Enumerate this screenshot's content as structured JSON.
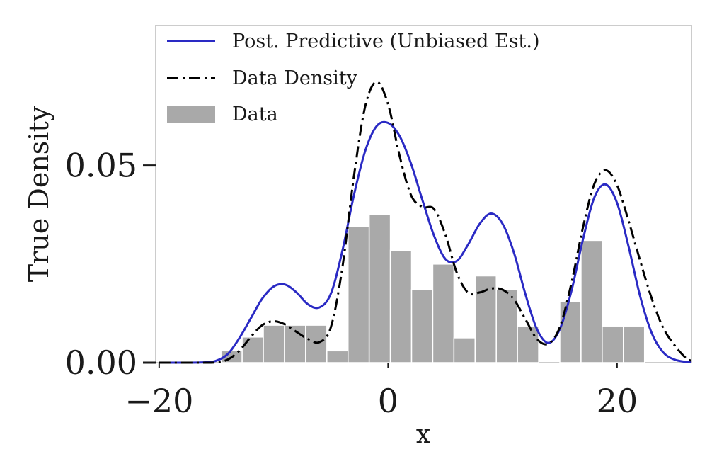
{
  "chart_data": {
    "type": "line",
    "xlabel": "x",
    "ylabel": "True Density",
    "xlim": [
      -20.3,
      26.5
    ],
    "ylim": [
      0,
      0.0855
    ],
    "xticks": [
      -20,
      0,
      20
    ],
    "xtick_labels": [
      "−20",
      "0",
      "20"
    ],
    "yticks": [
      0,
      0.05
    ],
    "ytick_labels": [
      "0.00",
      "0.05"
    ],
    "legend_position": "top-left",
    "legend": {
      "posterior": "Post. Predictive (Unbiased Est.)",
      "data_density": "Data Density",
      "data": "Data"
    },
    "histogram": {
      "bin_edges": [
        -14.6,
        -12.75,
        -10.9,
        -9.05,
        -7.2,
        -5.35,
        -3.5,
        -1.65,
        0.2,
        2.05,
        3.9,
        5.75,
        7.6,
        9.45,
        11.3,
        13.15,
        15.0,
        16.85,
        18.7,
        20.55,
        22.4,
        24.25
      ],
      "heights": [
        0.003,
        0.0065,
        0.0095,
        0.0095,
        0.0095,
        0.003,
        0.0345,
        0.0375,
        0.0285,
        0.0185,
        0.025,
        0.0063,
        0.022,
        0.0185,
        0.0093,
        0,
        0.0155,
        0.031,
        0.0093,
        0.0093,
        0
      ],
      "color": "#a9a9a9"
    },
    "series": [
      {
        "name": "Post. Predictive (Unbiased Est.)",
        "color": "#2a2ac4",
        "style": "solid",
        "x": [
          -20,
          -18,
          -16,
          -15,
          -14,
          -13,
          -12,
          -11,
          -10,
          -9,
          -8,
          -7,
          -6,
          -5,
          -4,
          -3,
          -2,
          -1,
          0,
          1,
          2,
          3,
          4,
          5,
          6,
          7,
          8,
          9,
          10,
          11,
          12,
          13,
          14,
          15,
          16,
          17,
          18,
          19,
          20,
          21,
          22,
          23,
          24,
          25,
          26,
          26.5
        ],
        "y": [
          0.0,
          0.0,
          0.0001,
          0.0005,
          0.0022,
          0.0062,
          0.0112,
          0.0162,
          0.0193,
          0.0198,
          0.0178,
          0.0148,
          0.014,
          0.0175,
          0.0283,
          0.0423,
          0.0537,
          0.06,
          0.0608,
          0.0575,
          0.0505,
          0.0412,
          0.0323,
          0.0263,
          0.0258,
          0.03,
          0.0352,
          0.0378,
          0.0352,
          0.0278,
          0.0173,
          0.0085,
          0.005,
          0.0085,
          0.018,
          0.031,
          0.0418,
          0.0452,
          0.0405,
          0.0295,
          0.017,
          0.0077,
          0.0027,
          0.0008,
          0.0002,
          0.0001
        ]
      },
      {
        "name": "Data Density",
        "color": "#000000",
        "style": "dashdot",
        "x": [
          -20,
          -18,
          -16,
          -15,
          -14,
          -13,
          -12,
          -11,
          -10,
          -9,
          -8,
          -7,
          -6,
          -5,
          -4,
          -3,
          -2,
          -1,
          0,
          1,
          2,
          3,
          4,
          5,
          6,
          7,
          8,
          9,
          10,
          11,
          12,
          13,
          14,
          15,
          16,
          17,
          18,
          19,
          20,
          21,
          22,
          23,
          24,
          25,
          26,
          26.5
        ],
        "y": [
          0.0,
          0.0,
          0.0,
          0.0001,
          0.0008,
          0.003,
          0.0065,
          0.0095,
          0.0105,
          0.0097,
          0.0078,
          0.006,
          0.0052,
          0.009,
          0.024,
          0.047,
          0.065,
          0.0712,
          0.0655,
          0.0525,
          0.0425,
          0.0395,
          0.039,
          0.0325,
          0.0228,
          0.0177,
          0.0178,
          0.0188,
          0.0185,
          0.016,
          0.011,
          0.006,
          0.0048,
          0.009,
          0.02,
          0.034,
          0.0452,
          0.0488,
          0.045,
          0.036,
          0.026,
          0.0165,
          0.009,
          0.0045,
          0.0012,
          0.0005
        ]
      }
    ]
  }
}
